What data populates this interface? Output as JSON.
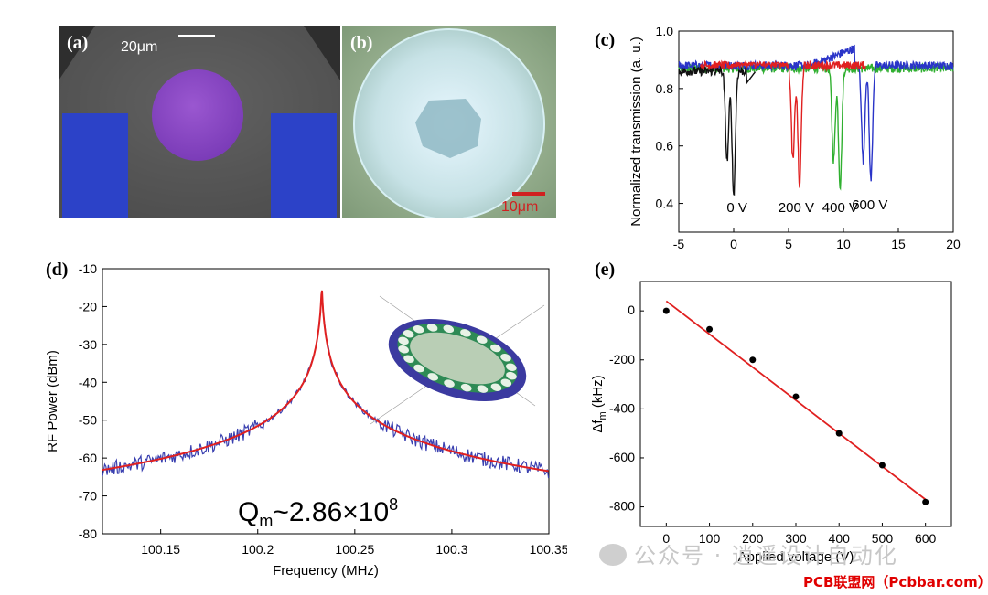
{
  "panels": {
    "a": {
      "label": "(a)",
      "scale_bar": "20μm"
    },
    "b": {
      "label": "(b)",
      "scale_bar": "10μm"
    },
    "c": {
      "label": "(c)"
    },
    "d": {
      "label": "(d)"
    },
    "e": {
      "label": "(e)"
    }
  },
  "colors": {
    "black": "#111111",
    "red": "#e02020",
    "green": "#30b030",
    "blue": "#2a34c8"
  },
  "chart_data": [
    {
      "id": "c",
      "type": "line",
      "title": "",
      "xlabel": "",
      "ylabel": "Normalized transmission (a. u.)",
      "xlim": [
        -5,
        20
      ],
      "ylim": [
        0.3,
        1.0
      ],
      "xticks": [
        "-5",
        "0",
        "5",
        "10",
        "15",
        "20"
      ],
      "yticks": [
        "0.4",
        "0.6",
        "0.8",
        "1.0"
      ],
      "series": [
        {
          "name": "0 V",
          "color": "#111111",
          "baseline": 0.86,
          "dips": [
            {
              "x": -0.6,
              "y": 0.55
            },
            {
              "x": 0.0,
              "y": 0.43
            }
          ],
          "x": [
            -5,
            2
          ]
        },
        {
          "name": "200 V",
          "color": "#e02020",
          "baseline": 0.88,
          "dips": [
            {
              "x": 5.4,
              "y": 0.55
            },
            {
              "x": 6.0,
              "y": 0.46
            }
          ],
          "x": [
            -3,
            12
          ]
        },
        {
          "name": "400 V",
          "color": "#30b030",
          "baseline": 0.87,
          "dips": [
            {
              "x": 9.1,
              "y": 0.55
            },
            {
              "x": 9.7,
              "y": 0.46
            }
          ],
          "x": [
            -5,
            20
          ]
        },
        {
          "name": "600 V",
          "color": "#2a34c8",
          "baseline": 0.88,
          "dips": [
            {
              "x": 11.8,
              "y": 0.55
            },
            {
              "x": 12.5,
              "y": 0.48
            }
          ],
          "x": [
            -5,
            20
          ]
        }
      ],
      "annotations": [
        "0 V",
        "200 V",
        "400 V",
        "600 V"
      ]
    },
    {
      "id": "d",
      "type": "line",
      "xlabel": "Frequency (MHz)",
      "ylabel": "RF Power (dBm)",
      "xlim": [
        100.12,
        100.35
      ],
      "ylim": [
        -80,
        -10
      ],
      "xticks": [
        "100.15",
        "100.2",
        "100.25",
        "100.3",
        "100.35"
      ],
      "yticks": [
        "-10",
        "-20",
        "-30",
        "-40",
        "-50",
        "-60",
        "-70",
        "-80"
      ],
      "peak": {
        "x": 100.233,
        "y": -14.5
      },
      "series": [
        {
          "name": "measured",
          "color": "#3a40b0"
        },
        {
          "name": "fit",
          "color": "#e02020"
        }
      ],
      "annotation": {
        "text_main": "Q",
        "text_sub": "m",
        "text_rest": "~2.86×10",
        "text_sup": "8"
      }
    },
    {
      "id": "e",
      "type": "scatter",
      "xlabel": "Applied voltage (V)",
      "ylabel_main": "Δf",
      "ylabel_sub": "m",
      "ylabel_rest": " (kHz)",
      "xlim": [
        -60,
        660
      ],
      "ylim": [
        -880,
        120
      ],
      "xticks": [
        "0",
        "100",
        "200",
        "300",
        "400",
        "500",
        "600"
      ],
      "yticks": [
        "0",
        "-200",
        "-400",
        "-600",
        "-800"
      ],
      "x": [
        0,
        100,
        200,
        300,
        400,
        500,
        600
      ],
      "y": [
        0,
        -75,
        -200,
        -350,
        -500,
        -630,
        -780
      ],
      "fit": {
        "x": [
          0,
          600
        ],
        "y": [
          40,
          -770
        ],
        "color": "#e02020"
      }
    }
  ],
  "watermark": {
    "text": "公众号 · 逍遥设计自动化",
    "credit": "PCB联盟网（Pcbbar.com）"
  }
}
